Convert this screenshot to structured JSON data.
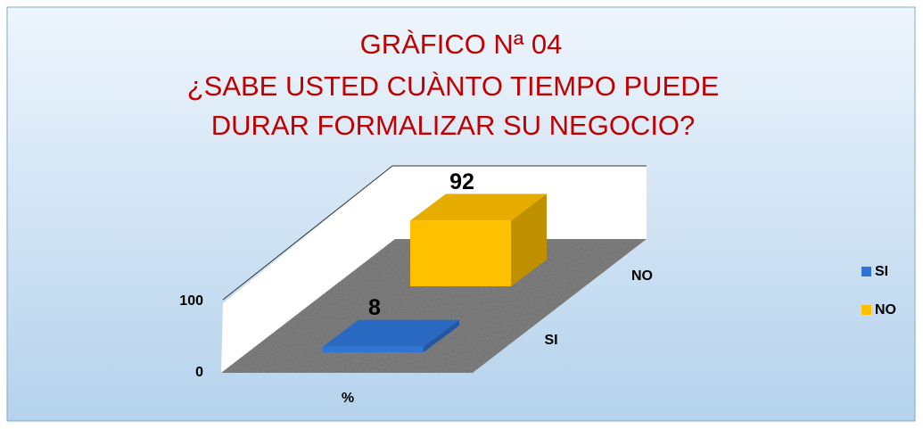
{
  "chart_data": {
    "type": "bar3d",
    "title": [
      "GRÀFICO Nª 04",
      "¿SABE USTED CUÀNTO TIEMPO PUEDE",
      "DURAR FORMALIZAR SU NEGOCIO?"
    ],
    "categories": [
      "%"
    ],
    "series": [
      {
        "name": "SI",
        "color": "#2e75d6",
        "values": [
          8
        ]
      },
      {
        "name": "NO",
        "color": "#ffc000",
        "values": [
          92
        ]
      }
    ],
    "ylim": [
      0,
      100
    ],
    "yticks": [
      0,
      100
    ],
    "legend": "right"
  }
}
